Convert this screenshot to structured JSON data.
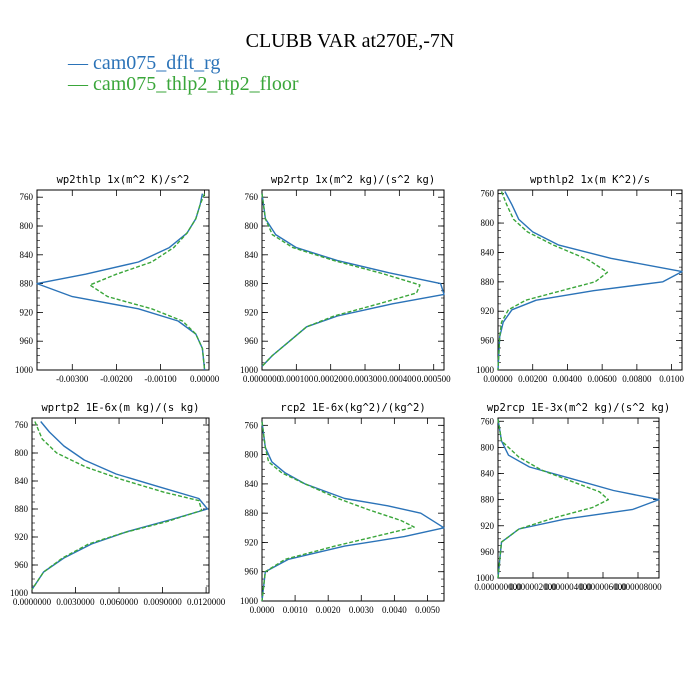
{
  "title": "CLUBB VAR at270E,-7N",
  "legend": [
    {
      "label": "cam075_dflt_rg",
      "color": "#2b73b8"
    },
    {
      "label": "cam075_thlp2_rtp2_floor",
      "color": "#3aa63a"
    }
  ],
  "chart_data": [
    {
      "type": "line",
      "title": "wp2thlp  1x(m^2 K)/s^2",
      "ylim": [
        1000,
        750
      ],
      "yticks": [
        760,
        800,
        840,
        880,
        920,
        960,
        1000
      ],
      "xlim": [
        -0.0038,
        0.0001
      ],
      "xticks": [
        -0.003,
        -0.002,
        -0.001,
        0.0
      ],
      "xtick_labels": [
        "-0.00300",
        "-0.00200",
        "-0.00100",
        "0.00000"
      ],
      "series": [
        {
          "name": "cam075_dflt_rg",
          "points": [
            [
              -5e-05,
              755
            ],
            [
              -0.0001,
              770
            ],
            [
              -0.0002,
              790
            ],
            [
              -0.0004,
              810
            ],
            [
              -0.0008,
              830
            ],
            [
              -0.0015,
              850
            ],
            [
              -0.0027,
              867
            ],
            [
              -0.0038,
              880
            ],
            [
              -0.003,
              898
            ],
            [
              -0.0015,
              915
            ],
            [
              -0.0006,
              932
            ],
            [
              -0.0002,
              950
            ],
            [
              -5e-05,
              970
            ],
            [
              0.0,
              1000
            ]
          ]
        },
        {
          "name": "cam075_thlp2_rtp2_floor",
          "points": [
            [
              0.0,
              755
            ],
            [
              -0.0001,
              770
            ],
            [
              -0.0002,
              790
            ],
            [
              -0.0004,
              810
            ],
            [
              -0.0007,
              830
            ],
            [
              -0.0012,
              850
            ],
            [
              -0.002,
              867
            ],
            [
              -0.0026,
              882
            ],
            [
              -0.0022,
              898
            ],
            [
              -0.0012,
              915
            ],
            [
              -0.0005,
              932
            ],
            [
              -0.0002,
              950
            ],
            [
              -5e-05,
              970
            ],
            [
              0.0,
              1000
            ]
          ]
        }
      ]
    },
    {
      "type": "line",
      "title": "wp2rtp  1x(m^2 kg)/(s^2 kg)",
      "ylim": [
        1000,
        750
      ],
      "yticks": [
        760,
        800,
        840,
        880,
        920,
        960,
        1000
      ],
      "xlim": [
        0.0,
        0.00053
      ],
      "xticks": [
        0.0,
        0.0001,
        0.0002,
        0.0003,
        0.0004,
        0.0005
      ],
      "xtick_labels": [
        "0.0000000",
        "0.000100",
        "0.000200",
        "0.000300",
        "0.000400",
        "0.000500"
      ],
      "series": [
        {
          "name": "cam075_dflt_rg",
          "points": [
            [
              0.0,
              755
            ],
            [
              1e-05,
              790
            ],
            [
              4e-05,
              812
            ],
            [
              0.0001,
              830
            ],
            [
              0.00022,
              848
            ],
            [
              0.00037,
              865
            ],
            [
              0.00052,
              880
            ],
            [
              0.00053,
              895
            ],
            [
              0.00038,
              908
            ],
            [
              0.00022,
              925
            ],
            [
              0.00013,
              940
            ],
            [
              8e-05,
              960
            ],
            [
              3e-05,
              980
            ],
            [
              0.0,
              995
            ]
          ]
        },
        {
          "name": "cam075_thlp2_rtp2_floor",
          "points": [
            [
              0.0,
              755
            ],
            [
              1e-05,
              790
            ],
            [
              3e-05,
              812
            ],
            [
              9e-05,
              830
            ],
            [
              0.00021,
              848
            ],
            [
              0.00035,
              866
            ],
            [
              0.00046,
              882
            ],
            [
              0.00045,
              893
            ],
            [
              0.00034,
              908
            ],
            [
              0.00021,
              925
            ],
            [
              0.00013,
              940
            ],
            [
              8e-05,
              960
            ],
            [
              3e-05,
              980
            ],
            [
              0.0,
              995
            ]
          ]
        }
      ]
    },
    {
      "type": "line",
      "title": "wpthlp2  1x(m K^2)/s",
      "ylim": [
        1000,
        755
      ],
      "yticks": [
        760,
        800,
        840,
        880,
        920,
        960,
        1000
      ],
      "xlim": [
        0.0,
        0.0106
      ],
      "xticks": [
        0.0,
        0.002,
        0.004,
        0.006,
        0.008,
        0.01
      ],
      "xtick_labels": [
        "0.00000",
        "0.00200",
        "0.00400",
        "0.00600",
        "0.00800",
        "0.0100"
      ],
      "series": [
        {
          "name": "cam075_dflt_rg",
          "points": [
            [
              0.0004,
              757
            ],
            [
              0.0008,
              775
            ],
            [
              0.0012,
              795
            ],
            [
              0.002,
              812
            ],
            [
              0.0035,
              830
            ],
            [
              0.0065,
              848
            ],
            [
              0.0106,
              866
            ],
            [
              0.0095,
              880
            ],
            [
              0.0055,
              892
            ],
            [
              0.0022,
              905
            ],
            [
              0.0008,
              918
            ],
            [
              0.0003,
              935
            ],
            [
              0.0001,
              955
            ],
            [
              0.0,
              1000
            ]
          ]
        },
        {
          "name": "cam075_thlp2_rtp2_floor",
          "points": [
            [
              0.0002,
              757
            ],
            [
              0.0005,
              775
            ],
            [
              0.0009,
              795
            ],
            [
              0.0017,
              812
            ],
            [
              0.0032,
              830
            ],
            [
              0.0052,
              850
            ],
            [
              0.0063,
              867
            ],
            [
              0.0056,
              880
            ],
            [
              0.0035,
              893
            ],
            [
              0.0016,
              905
            ],
            [
              0.0006,
              918
            ],
            [
              0.0002,
              935
            ],
            [
              0.0001,
              955
            ],
            [
              0.0,
              1000
            ]
          ]
        }
      ]
    },
    {
      "type": "line",
      "title": "wprtp2  1E-6x(m kg)/(s kg)",
      "ylim": [
        1000,
        750
      ],
      "yticks": [
        760,
        800,
        840,
        880,
        920,
        960,
        1000
      ],
      "xlim": [
        0.0,
        0.0122
      ],
      "xticks": [
        0.0,
        0.003,
        0.006,
        0.009,
        0.012
      ],
      "xtick_labels": [
        "0.0000000",
        "0.0030000",
        "0.0060000",
        "0.0090000",
        "0.0120000"
      ],
      "series": [
        {
          "name": "cam075_dflt_rg",
          "points": [
            [
              0.0006,
              755
            ],
            [
              0.0012,
              770
            ],
            [
              0.0022,
              790
            ],
            [
              0.0036,
              810
            ],
            [
              0.0058,
              830
            ],
            [
              0.0087,
              848
            ],
            [
              0.0115,
              865
            ],
            [
              0.0121,
              880
            ],
            [
              0.0096,
              895
            ],
            [
              0.0066,
              912
            ],
            [
              0.0041,
              930
            ],
            [
              0.0022,
              950
            ],
            [
              0.0008,
              970
            ],
            [
              0.0,
              995
            ]
          ]
        },
        {
          "name": "cam075_thlp2_rtp2_floor",
          "points": [
            [
              0.0002,
              755
            ],
            [
              0.0007,
              780
            ],
            [
              0.0017,
              800
            ],
            [
              0.0037,
              820
            ],
            [
              0.0062,
              838
            ],
            [
              0.0091,
              856
            ],
            [
              0.0115,
              868
            ],
            [
              0.0117,
              882
            ],
            [
              0.0093,
              898
            ],
            [
              0.0063,
              914
            ],
            [
              0.0039,
              930
            ],
            [
              0.0021,
              950
            ],
            [
              0.0008,
              970
            ],
            [
              0.0,
              995
            ]
          ]
        }
      ]
    },
    {
      "type": "line",
      "title": "rcp2  1E-6x(kg^2)/(kg^2)",
      "ylim": [
        1000,
        750
      ],
      "yticks": [
        760,
        800,
        840,
        880,
        920,
        960,
        1000
      ],
      "xlim": [
        0.0,
        0.0055
      ],
      "xticks": [
        0.0,
        0.001,
        0.002,
        0.003,
        0.004,
        0.005
      ],
      "xtick_labels": [
        "0.0000",
        "0.0010",
        "0.0020",
        "0.0030",
        "0.0040",
        "0.0050"
      ],
      "series": [
        {
          "name": "cam075_dflt_rg",
          "points": [
            [
              0.0,
              755
            ],
            [
              0.0001,
              790
            ],
            [
              0.0003,
              810
            ],
            [
              0.0007,
              825
            ],
            [
              0.0013,
              840
            ],
            [
              0.0025,
              860
            ],
            [
              0.0038,
              870
            ],
            [
              0.0048,
              880
            ],
            [
              0.0055,
              900
            ],
            [
              0.0043,
              912
            ],
            [
              0.0025,
              925
            ],
            [
              0.0008,
              943
            ],
            [
              0.0001,
              960
            ],
            [
              0.0,
              1000
            ]
          ]
        },
        {
          "name": "cam075_thlp2_rtp2_floor",
          "points": [
            [
              0.0,
              755
            ],
            [
              0.0001,
              790
            ],
            [
              0.0002,
              810
            ],
            [
              0.0006,
              825
            ],
            [
              0.0013,
              840
            ],
            [
              0.0023,
              860
            ],
            [
              0.0032,
              875
            ],
            [
              0.0042,
              890
            ],
            [
              0.0046,
              899
            ],
            [
              0.0036,
              910
            ],
            [
              0.0022,
              925
            ],
            [
              0.0007,
              943
            ],
            [
              0.0001,
              960
            ],
            [
              0.0,
              1000
            ]
          ]
        }
      ]
    },
    {
      "type": "line",
      "title": "wp2rcp  1E-3x(m^2 kg)/(s^2 kg)",
      "ylim": [
        1000,
        755
      ],
      "yticks": [
        760,
        800,
        840,
        880,
        920,
        960,
        1000
      ],
      "xlim": [
        0.0,
        9.2e-06
      ],
      "xticks": [
        0.0,
        2e-06,
        4e-06,
        6e-06,
        8e-06
      ],
      "xtick_labels": [
        "0.000000000",
        "0.000002000",
        "0.000004000",
        "0.000006000",
        "0.000008000"
      ],
      "series": [
        {
          "name": "cam075_dflt_rg",
          "points": [
            [
              0.0,
              757
            ],
            [
              2e-07,
              790
            ],
            [
              6e-07,
              812
            ],
            [
              1.8e-06,
              830
            ],
            [
              4.2e-06,
              848
            ],
            [
              6.6e-06,
              866
            ],
            [
              9.2e-06,
              880
            ],
            [
              7.7e-06,
              895
            ],
            [
              3.8e-06,
              910
            ],
            [
              1.2e-06,
              925
            ],
            [
              2e-07,
              945
            ],
            [
              0.0,
              1000
            ]
          ]
        },
        {
          "name": "cam075_thlp2_rtp2_floor",
          "points": [
            [
              0.0,
              757
            ],
            [
              2e-07,
              790
            ],
            [
              1.2e-06,
              815
            ],
            [
              2.5e-06,
              835
            ],
            [
              4.2e-06,
              852
            ],
            [
              5.8e-06,
              868
            ],
            [
              6.3e-06,
              880
            ],
            [
              5.4e-06,
              892
            ],
            [
              3.2e-06,
              908
            ],
            [
              1.2e-06,
              925
            ],
            [
              2e-07,
              945
            ],
            [
              0.0,
              1000
            ]
          ]
        }
      ]
    }
  ]
}
